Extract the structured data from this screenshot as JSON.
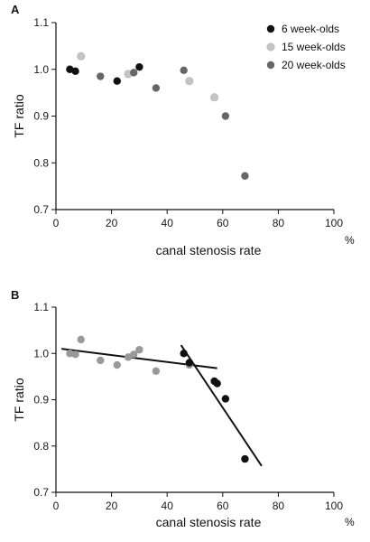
{
  "chart_data": [
    {
      "panel": "A",
      "type": "scatter",
      "xlabel": "canal stenosis rate",
      "xunit": "%",
      "ylabel": "TF ratio",
      "xlim": [
        0,
        100
      ],
      "ylim": [
        0.7,
        1.1
      ],
      "xticks": [
        "0",
        "20",
        "40",
        "60",
        "80",
        "100"
      ],
      "yticks": [
        "0.7",
        "0.8",
        "0.9",
        "1.0",
        "1.1"
      ],
      "legend_position": "top-right",
      "series": [
        {
          "name": "6 week-olds",
          "color": "#111111",
          "points": [
            [
              5,
              1.0
            ],
            [
              7,
              0.996
            ],
            [
              22,
              0.975
            ],
            [
              30,
              1.005
            ]
          ]
        },
        {
          "name": "15 week-olds",
          "color": "#c4c4c4",
          "points": [
            [
              9,
              1.028
            ],
            [
              26,
              0.99
            ],
            [
              48,
              0.975
            ],
            [
              57,
              0.94
            ]
          ]
        },
        {
          "name": "20 week-olds",
          "color": "#666666",
          "points": [
            [
              16,
              0.985
            ],
            [
              28,
              0.993
            ],
            [
              36,
              0.96
            ],
            [
              46,
              0.998
            ],
            [
              61,
              0.9
            ],
            [
              68,
              0.772
            ]
          ]
        }
      ]
    },
    {
      "panel": "B",
      "type": "scatter",
      "xlabel": "canal stenosis rate",
      "xunit": "%",
      "ylabel": "TF ratio",
      "xlim": [
        0,
        100
      ],
      "ylim": [
        0.7,
        1.1
      ],
      "xticks": [
        "0",
        "20",
        "40",
        "60",
        "80",
        "100"
      ],
      "yticks": [
        "0.7",
        "0.8",
        "0.9",
        "1.0",
        "1.1"
      ],
      "series": [
        {
          "name": "",
          "color": "#999999",
          "points": [
            [
              5,
              1.0
            ],
            [
              7,
              0.998
            ],
            [
              9,
              1.03
            ],
            [
              16,
              0.985
            ],
            [
              22,
              0.975
            ],
            [
              26,
              0.992
            ],
            [
              28,
              0.998
            ],
            [
              30,
              1.008
            ],
            [
              36,
              0.962
            ],
            [
              48,
              0.975
            ]
          ]
        },
        {
          "name": "",
          "color": "#111111",
          "points": [
            [
              46,
              1.0
            ],
            [
              48,
              0.98
            ],
            [
              57,
              0.94
            ],
            [
              58,
              0.935
            ],
            [
              61,
              0.902
            ],
            [
              68,
              0.772
            ]
          ]
        }
      ],
      "fit_lines": [
        {
          "x": [
            2,
            58
          ],
          "y": [
            1.01,
            0.968
          ]
        },
        {
          "x": [
            45,
            74
          ],
          "y": [
            1.018,
            0.757
          ]
        }
      ]
    }
  ]
}
